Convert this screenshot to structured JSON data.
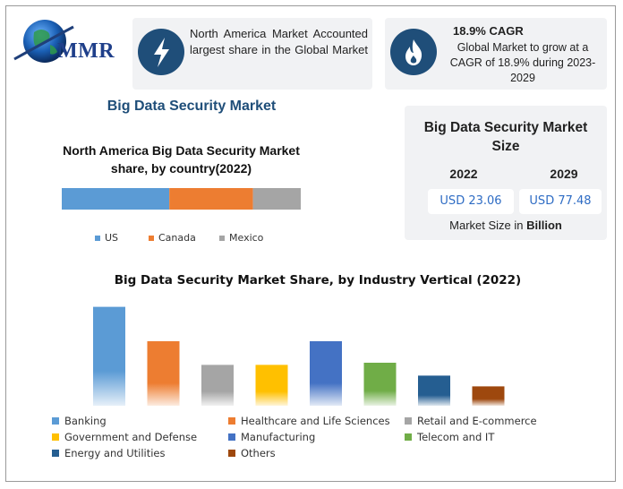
{
  "brand": {
    "name": "MMR"
  },
  "highlight1": {
    "icon": "lightning-bolt-icon",
    "text": "North America Market Accounted largest share in the Global Market"
  },
  "highlight2": {
    "icon": "flame-icon",
    "title": "18.9% CAGR",
    "text": "Global Market to grow at a CAGR of 18.9% during 2023-2029"
  },
  "main_title": "Big Data Security Market",
  "size_box": {
    "title": "Big Data Security Market Size",
    "years": [
      "2022",
      "2029"
    ],
    "values": [
      "USD 23.06",
      "USD 77.48"
    ],
    "note_prefix": "Market Size in ",
    "note_bold": "Billion"
  },
  "colors": {
    "navy": "#1f4e79",
    "title_blue": "#1f4e79",
    "card": "#f1f2f4"
  },
  "chart_data": [
    {
      "type": "bar",
      "orientation": "horizontal-stacked",
      "title": "North America Big Data Security Market share, by country(2022)",
      "categories": [
        "US",
        "Canada",
        "Mexico"
      ],
      "values": [
        45,
        35,
        20
      ],
      "unit": "%",
      "colors": [
        "#5b9bd5",
        "#ed7d31",
        "#a5a5a5"
      ],
      "legend": "bottom"
    },
    {
      "type": "bar",
      "title": "Big Data Security Market Share, by Industry Vertical (2022)",
      "categories": [
        "Banking",
        "Healthcare and Life Sciences",
        "Retail and E-commerce",
        "Government and Defense",
        "Manufacturing",
        "Telecom and IT",
        "Energy and Utilities",
        "Others"
      ],
      "values": [
        92,
        60,
        38,
        38,
        60,
        40,
        28,
        18
      ],
      "ylim": [
        0,
        100
      ],
      "colors": [
        "#5b9bd5",
        "#ed7d31",
        "#a5a5a5",
        "#ffc000",
        "#4472c4",
        "#70ad47",
        "#255e91",
        "#9e480e"
      ],
      "grid": false,
      "legend": "bottom"
    }
  ]
}
